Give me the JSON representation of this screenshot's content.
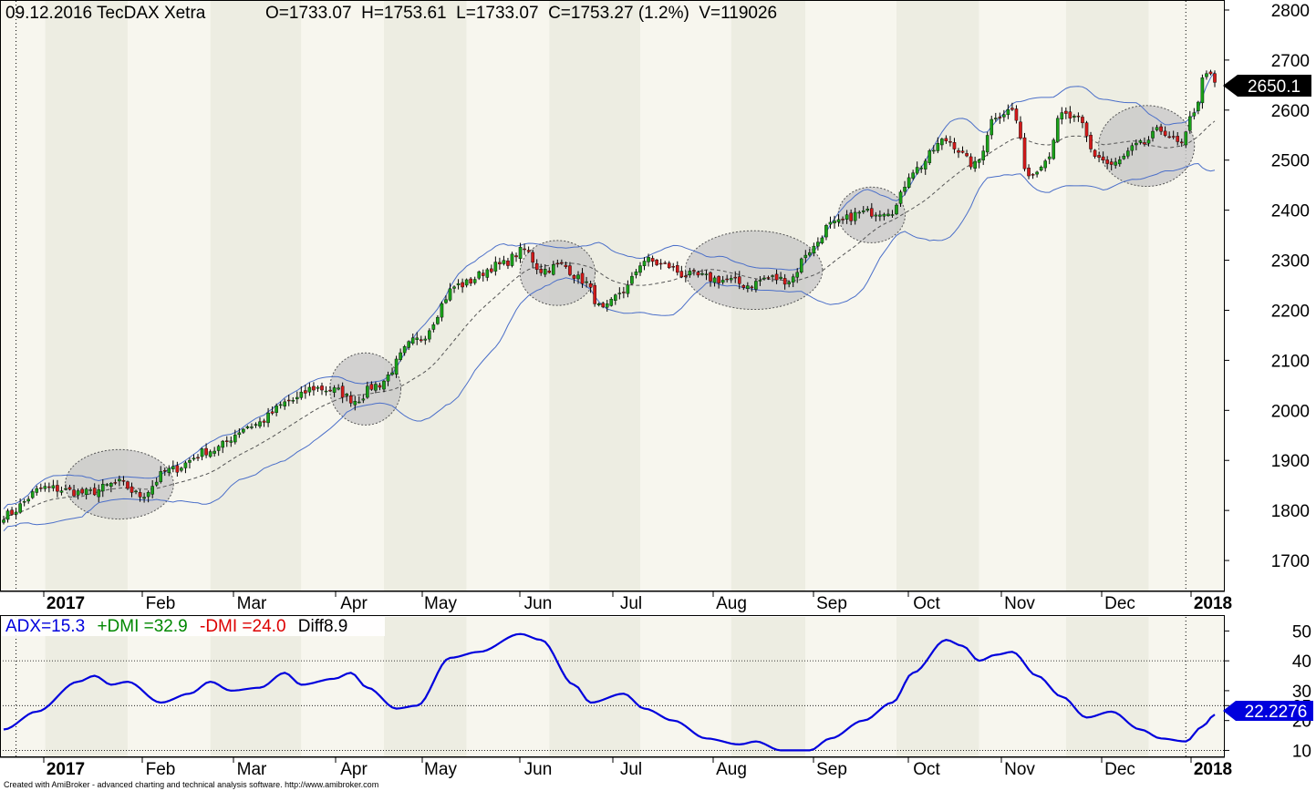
{
  "header": {
    "date": "09.12.2016",
    "symbol": "TecDAX Xetra",
    "ohlc": "O=1733.07  H=1753.61  L=1733.07  C=1753.27 (1.2%)  V=119026"
  },
  "footer": {
    "credit": "Created with AmiBroker - advanced charting and technical analysis software. http://www.amibroker.com"
  },
  "colors": {
    "background": "#ffffff",
    "band_light": "#f7f6ee",
    "band_dark": "#edede2",
    "up_candle": "#19a019",
    "down_candle": "#d11a1a",
    "bollinger": "#4b6fc9",
    "adx": "#0000dd",
    "plus_dmi": "#008800",
    "minus_dmi": "#dd0000",
    "highlight": "#c8c8c8"
  },
  "chart_data": [
    {
      "type": "candlestick",
      "title": "09.12.2016 TecDAX Xetra",
      "ylim": [
        1640,
        2820
      ],
      "yticks": [
        1700,
        1800,
        1900,
        2000,
        2100,
        2200,
        2300,
        2400,
        2500,
        2600,
        2700,
        2800
      ],
      "last_price_label": "2650.1",
      "months": [
        "2017",
        "Feb",
        "Mar",
        "Apr",
        "May",
        "Jun",
        "Jul",
        "Aug",
        "Sep",
        "Oct",
        "Nov",
        "Dec",
        "2018"
      ],
      "overlays": [
        "Bollinger Bands",
        "Moving Average"
      ],
      "close_anchors": [
        [
          0,
          1790
        ],
        [
          10,
          1845
        ],
        [
          20,
          1835
        ],
        [
          28,
          1855
        ],
        [
          33,
          1830
        ],
        [
          40,
          1880
        ],
        [
          50,
          1920
        ],
        [
          60,
          1970
        ],
        [
          70,
          2020
        ],
        [
          75,
          2045
        ],
        [
          80,
          2040
        ],
        [
          85,
          2020
        ],
        [
          90,
          2050
        ],
        [
          100,
          2140
        ],
        [
          110,
          2250
        ],
        [
          120,
          2290
        ],
        [
          126,
          2320
        ],
        [
          130,
          2280
        ],
        [
          135,
          2290
        ],
        [
          140,
          2260
        ],
        [
          145,
          2200
        ],
        [
          150,
          2240
        ],
        [
          155,
          2300
        ],
        [
          160,
          2290
        ],
        [
          165,
          2270
        ],
        [
          175,
          2260
        ],
        [
          180,
          2250
        ],
        [
          185,
          2265
        ],
        [
          190,
          2260
        ],
        [
          195,
          2320
        ],
        [
          200,
          2370
        ],
        [
          208,
          2395
        ],
        [
          215,
          2400
        ],
        [
          220,
          2480
        ],
        [
          228,
          2540
        ],
        [
          235,
          2490
        ],
        [
          240,
          2590
        ],
        [
          244,
          2600
        ],
        [
          248,
          2470
        ],
        [
          252,
          2500
        ],
        [
          256,
          2590
        ],
        [
          260,
          2580
        ],
        [
          264,
          2510
        ],
        [
          268,
          2490
        ],
        [
          275,
          2530
        ],
        [
          280,
          2560
        ],
        [
          285,
          2530
        ],
        [
          288,
          2600
        ],
        [
          291,
          2680
        ],
        [
          293,
          2650
        ]
      ],
      "highlighted_regions": [
        {
          "from_bar": 18,
          "to_bar": 38
        },
        {
          "from_bar": 82,
          "to_bar": 93
        },
        {
          "from_bar": 128,
          "to_bar": 140
        },
        {
          "from_bar": 168,
          "to_bar": 195
        },
        {
          "from_bar": 205,
          "to_bar": 215
        },
        {
          "from_bar": 268,
          "to_bar": 285
        }
      ]
    },
    {
      "type": "line",
      "series_label": "ADX=15.3",
      "plus_dmi_label": "+DMI =32.9",
      "minus_dmi_label": "-DMI =24.0",
      "diff_label": "Diff8.9",
      "last_value_label": "22.2276",
      "ylim": [
        8,
        55
      ],
      "yticks": [
        10,
        20,
        25,
        30,
        40,
        50
      ],
      "reference_lines": [
        10,
        25,
        40
      ],
      "months": [
        "2017",
        "Feb",
        "Mar",
        "Apr",
        "May",
        "Jun",
        "Jul",
        "Aug",
        "Sep",
        "Oct",
        "Nov",
        "Dec",
        "2018"
      ],
      "adx_anchors": [
        [
          0,
          17
        ],
        [
          8,
          23
        ],
        [
          18,
          33
        ],
        [
          22,
          35
        ],
        [
          26,
          32
        ],
        [
          30,
          33
        ],
        [
          38,
          26
        ],
        [
          45,
          29
        ],
        [
          50,
          33
        ],
        [
          55,
          30
        ],
        [
          62,
          31
        ],
        [
          68,
          36
        ],
        [
          72,
          32
        ],
        [
          80,
          34
        ],
        [
          84,
          36
        ],
        [
          88,
          31
        ],
        [
          95,
          24
        ],
        [
          100,
          25
        ],
        [
          108,
          41
        ],
        [
          115,
          43
        ],
        [
          125,
          49
        ],
        [
          130,
          47
        ],
        [
          138,
          32
        ],
        [
          142,
          26
        ],
        [
          150,
          29
        ],
        [
          155,
          24
        ],
        [
          162,
          20
        ],
        [
          170,
          14
        ],
        [
          178,
          12
        ],
        [
          182,
          13
        ],
        [
          188,
          10
        ],
        [
          195,
          10
        ],
        [
          200,
          14
        ],
        [
          208,
          20
        ],
        [
          215,
          26
        ],
        [
          220,
          36
        ],
        [
          228,
          47
        ],
        [
          232,
          45
        ],
        [
          236,
          40
        ],
        [
          240,
          42
        ],
        [
          244,
          43
        ],
        [
          250,
          35
        ],
        [
          256,
          28
        ],
        [
          262,
          21
        ],
        [
          268,
          23
        ],
        [
          275,
          17
        ],
        [
          280,
          14
        ],
        [
          286,
          13
        ],
        [
          290,
          18
        ],
        [
          293,
          22
        ]
      ]
    }
  ]
}
